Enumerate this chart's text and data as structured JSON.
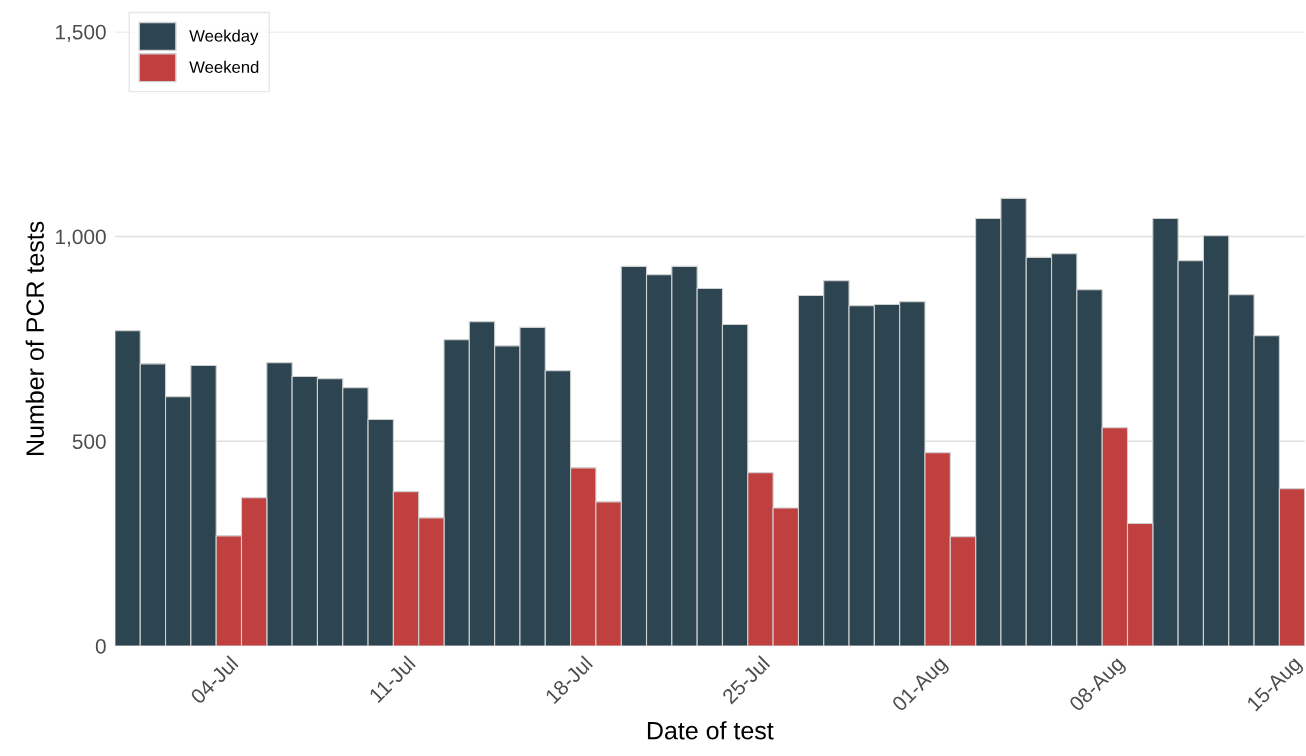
{
  "chart_data": {
    "type": "bar",
    "xlabel": "Date of test",
    "ylabel": "Number of PCR tests",
    "categories": [
      null,
      null,
      null,
      null,
      "04-Jul",
      null,
      null,
      null,
      null,
      null,
      null,
      "11-Jul",
      null,
      null,
      null,
      null,
      null,
      null,
      "18-Jul",
      null,
      null,
      null,
      null,
      null,
      null,
      "25-Jul",
      null,
      null,
      null,
      null,
      null,
      null,
      "01-Aug",
      null,
      null,
      null,
      null,
      null,
      null,
      "08-Aug",
      null,
      null,
      null,
      null,
      null,
      null,
      "15-Aug"
    ],
    "series": [
      {
        "name": "Weekday",
        "color": "#2d4550",
        "values": [
          770,
          689,
          609,
          685,
          null,
          null,
          692,
          658,
          653,
          631,
          553,
          null,
          null,
          748,
          792,
          733,
          778,
          672,
          null,
          null,
          927,
          907,
          927,
          873,
          785,
          null,
          null,
          856,
          892,
          831,
          834,
          841,
          null,
          null,
          1044,
          1093,
          949,
          958,
          870,
          null,
          null,
          1044,
          941,
          1002,
          858,
          758,
          null
        ]
      },
      {
        "name": "Weekend",
        "color": "#c04040",
        "values": [
          null,
          null,
          null,
          null,
          269,
          362,
          null,
          null,
          null,
          null,
          null,
          377,
          313,
          null,
          null,
          null,
          null,
          null,
          435,
          352,
          null,
          null,
          null,
          null,
          null,
          423,
          337,
          null,
          null,
          null,
          null,
          null,
          472,
          267,
          null,
          null,
          null,
          null,
          null,
          533,
          299,
          null,
          null,
          null,
          null,
          null,
          384
        ]
      }
    ],
    "ylim": [
      0,
      1500
    ],
    "yticks": [
      0,
      {
        "value": 500,
        "label": "500"
      },
      {
        "value": 1000,
        "label": "1,000"
      },
      {
        "value": 1500,
        "label": "1,500"
      }
    ],
    "grid": "y",
    "legend": "top left"
  }
}
